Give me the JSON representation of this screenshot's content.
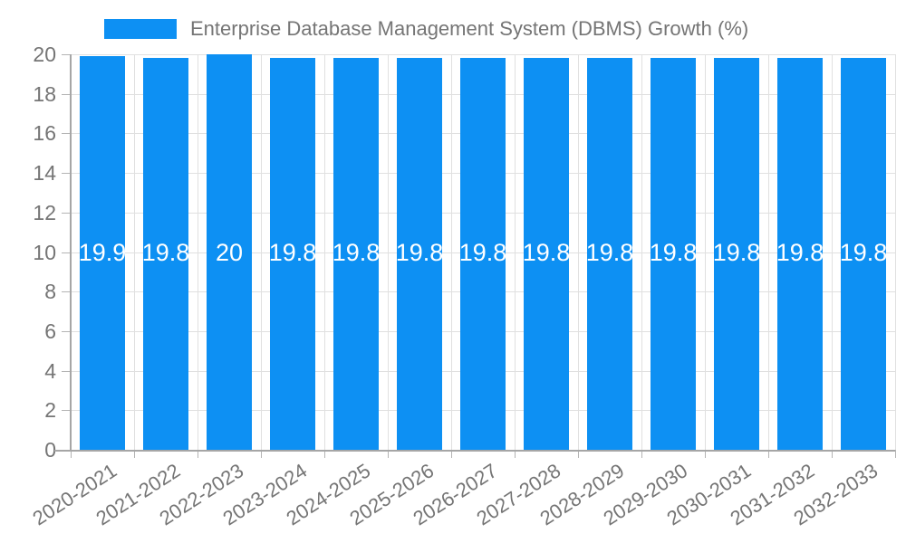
{
  "legend": {
    "label": "Enterprise Database Management System (DBMS) Growth (%)"
  },
  "chart_data": {
    "type": "bar",
    "title": "Enterprise Database Management System (DBMS) Growth (%)",
    "categories": [
      "2020-2021",
      "2021-2022",
      "2022-2023",
      "2023-2024",
      "2024-2025",
      "2025-2026",
      "2026-2027",
      "2027-2028",
      "2028-2029",
      "2029-2030",
      "2030-2031",
      "2031-2032",
      "2032-2033"
    ],
    "values": [
      19.9,
      19.8,
      20,
      19.8,
      19.8,
      19.8,
      19.8,
      19.8,
      19.8,
      19.8,
      19.8,
      19.8,
      19.8
    ],
    "bar_value_labels": [
      "19.9",
      "19.8",
      "20",
      "19.8",
      "19.8",
      "19.8",
      "19.8",
      "19.8",
      "19.8",
      "19.8",
      "19.8",
      "19.8",
      "19.8"
    ],
    "xlabel": "",
    "ylabel": "",
    "ylim": [
      0,
      20
    ],
    "yticks": [
      0,
      2,
      4,
      6,
      8,
      10,
      12,
      14,
      16,
      18,
      20
    ],
    "grid": true,
    "legend_position": "top-left",
    "colors": {
      "bar": "#0d90f3",
      "bar_value_label": "#ffffff",
      "grid": "#e0e0e0",
      "axis": "#a6a6a6",
      "tick": "#b4b4b4",
      "text": "#757575",
      "background": "#ffffff"
    }
  }
}
